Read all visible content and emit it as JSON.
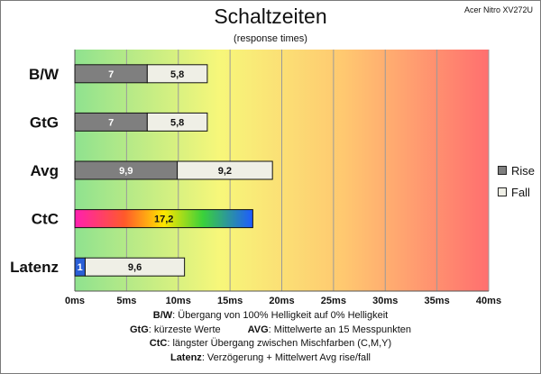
{
  "header": {
    "title": "Schaltzeiten",
    "subtitle": "(response times)",
    "model": "Acer Nitro XV272U"
  },
  "colors": {
    "rise": "#7f7f7f",
    "fall": "#efefe6",
    "latency": "#2a5fd6",
    "background_gradient": [
      "#8ee08e",
      "#f5f57a",
      "#ff7070"
    ]
  },
  "chart_data": {
    "type": "bar",
    "orientation": "horizontal",
    "stacked": true,
    "categories": [
      "B/W",
      "GtG",
      "Avg",
      "CtC",
      "Latenz"
    ],
    "series": [
      {
        "name": "Rise",
        "values": [
          7,
          7,
          9.9,
          null,
          null
        ],
        "color": "#7f7f7f"
      },
      {
        "name": "Fall",
        "values": [
          5.8,
          5.8,
          9.2,
          null,
          null
        ],
        "color": "#efefe6"
      },
      {
        "name": "CtC",
        "values": [
          null,
          null,
          null,
          17.2,
          null
        ],
        "color": "rainbow-gradient"
      },
      {
        "name": "Verzögerung",
        "values": [
          null,
          null,
          null,
          null,
          1
        ],
        "color": "#2a5fd6"
      },
      {
        "name": "Mittelwert Avg rise/fall",
        "values": [
          null,
          null,
          null,
          null,
          9.6
        ],
        "color": "#efefe6"
      }
    ],
    "data_labels": [
      [
        "7",
        "5,8"
      ],
      [
        "7",
        "5,8"
      ],
      [
        "9,9",
        "9,2"
      ],
      [
        "17,2"
      ],
      [
        "1",
        "9,6"
      ]
    ],
    "xlim": [
      0,
      40
    ],
    "xticks": [
      0,
      5,
      10,
      15,
      20,
      25,
      30,
      35,
      40
    ],
    "xtick_labels": [
      "0ms",
      "5ms",
      "10ms",
      "15ms",
      "20ms",
      "25ms",
      "30ms",
      "35ms",
      "40ms"
    ],
    "grid": true,
    "legend": {
      "placement": "right",
      "entries": [
        "Rise",
        "Fall"
      ]
    }
  },
  "footnotes": {
    "bw_key": "B/W",
    "bw_text": ":  Übergang von 100% Helligkeit auf 0% Helligkeit",
    "gtg_key": "GtG",
    "gtg_text": ": kürzeste  Werte",
    "avg_key": "AVG",
    "avg_text": ": Mittelwerte  an 15 Messpunkten",
    "ctc_key": "CtC",
    "ctc_text": ": längster Übergang  zwischen Mischfarben (C,M,Y)",
    "lat_key": "Latenz",
    "lat_text": ": Verzögerung  + Mittelwert Avg rise/fall"
  }
}
